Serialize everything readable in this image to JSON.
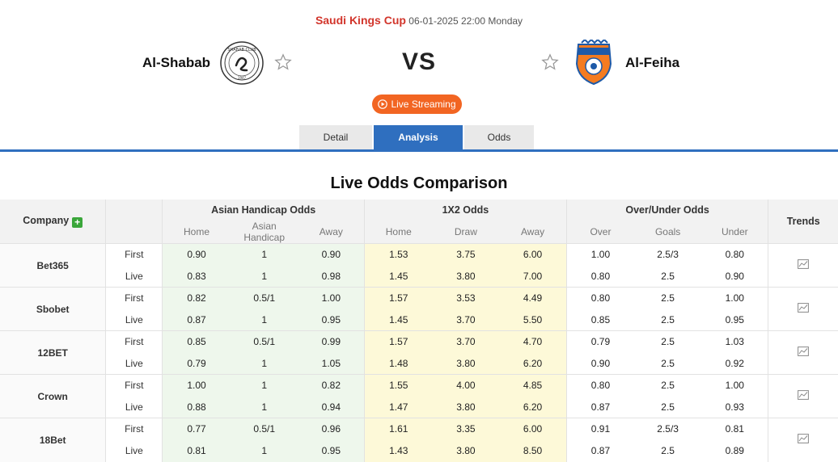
{
  "match": {
    "league": "Saudi Kings Cup",
    "datetime": "06-01-2025 22:00 Monday",
    "home_team": "Al-Shabab",
    "away_team": "Al-Feiha",
    "vs": "VS",
    "live_button": "Live Streaming"
  },
  "tabs": [
    {
      "label": "Detail"
    },
    {
      "label": "Analysis"
    },
    {
      "label": "Odds"
    }
  ],
  "section_title": "Live Odds Comparison",
  "table": {
    "company_header": "Company",
    "groups": [
      "Asian Handicap Odds",
      "1X2 Odds",
      "Over/Under Odds"
    ],
    "trends_header": "Trends",
    "subheaders": [
      "Home",
      "Asian Handicap",
      "Away",
      "Home",
      "Draw",
      "Away",
      "Over",
      "Goals",
      "Under"
    ],
    "rows": [
      {
        "company": "Bet365",
        "first": {
          "type": "First",
          "values": [
            "0.90",
            "1",
            "0.90",
            "1.53",
            "3.75",
            "6.00",
            "1.00",
            "2.5/3",
            "0.80"
          ]
        },
        "live": {
          "type": "Live",
          "values": [
            "0.83",
            "1",
            "0.98",
            "1.45",
            "3.80",
            "7.00",
            "0.80",
            "2.5",
            "0.90"
          ]
        }
      },
      {
        "company": "Sbobet",
        "first": {
          "type": "First",
          "values": [
            "0.82",
            "0.5/1",
            "1.00",
            "1.57",
            "3.53",
            "4.49",
            "0.80",
            "2.5",
            "1.00"
          ]
        },
        "live": {
          "type": "Live",
          "values": [
            "0.87",
            "1",
            "0.95",
            "1.45",
            "3.70",
            "5.50",
            "0.85",
            "2.5",
            "0.95"
          ]
        }
      },
      {
        "company": "12BET",
        "first": {
          "type": "First",
          "values": [
            "0.85",
            "0.5/1",
            "0.99",
            "1.57",
            "3.70",
            "4.70",
            "0.79",
            "2.5",
            "1.03"
          ]
        },
        "live": {
          "type": "Live",
          "values": [
            "0.79",
            "1",
            "1.05",
            "1.48",
            "3.80",
            "6.20",
            "0.90",
            "2.5",
            "0.92"
          ]
        }
      },
      {
        "company": "Crown",
        "first": {
          "type": "First",
          "values": [
            "1.00",
            "1",
            "0.82",
            "1.55",
            "4.00",
            "4.85",
            "0.80",
            "2.5",
            "1.00"
          ]
        },
        "live": {
          "type": "Live",
          "values": [
            "0.88",
            "1",
            "0.94",
            "1.47",
            "3.80",
            "6.20",
            "0.87",
            "2.5",
            "0.93"
          ]
        }
      },
      {
        "company": "18Bet",
        "first": {
          "type": "First",
          "values": [
            "0.77",
            "0.5/1",
            "0.96",
            "1.61",
            "3.35",
            "6.00",
            "0.91",
            "2.5/3",
            "0.81"
          ]
        },
        "live": {
          "type": "Live",
          "values": [
            "0.81",
            "1",
            "0.95",
            "1.43",
            "3.80",
            "8.50",
            "0.87",
            "2.5",
            "0.89"
          ]
        }
      }
    ]
  },
  "colors": {
    "accent_blue": "#2f6fbf",
    "live_orange": "#f26522",
    "league_red": "#d2352b",
    "plus_green": "#3aa63a"
  },
  "icons": {
    "home_logo": "al-shabab-crest",
    "away_logo": "al-feiha-crest",
    "favorite": "star-icon",
    "play": "play-circle-icon",
    "trend": "chart-icon",
    "add": "plus-icon"
  }
}
